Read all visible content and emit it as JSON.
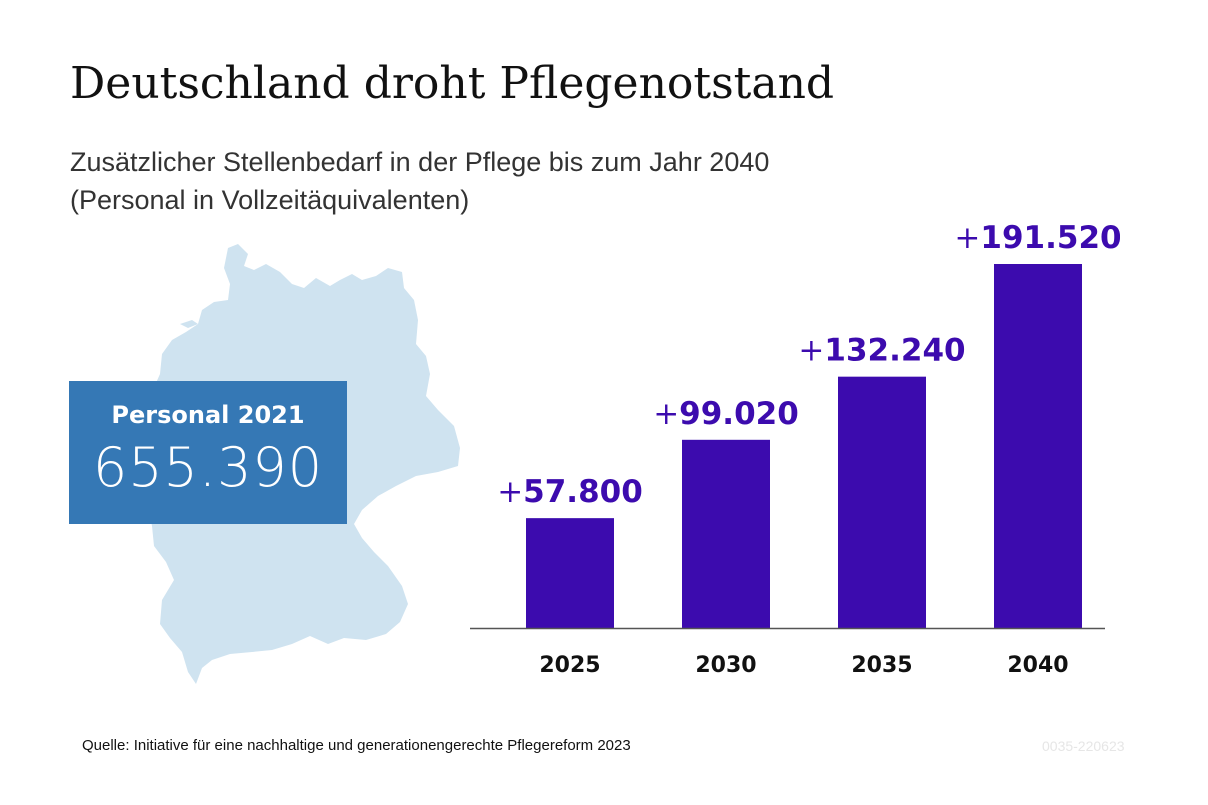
{
  "title": "Deutschland droht Pflegenotstand",
  "subtitle_line1": "Zusätzlicher Stellenbedarf in der Pflege bis zum Jahr 2040",
  "subtitle_line2": "(Personal in Vollzeitäquivalenten)",
  "info_box": {
    "label": "Personal 2021",
    "value": "655.390",
    "color": "#3578b5"
  },
  "map_color": "#cfe3f0",
  "chart_data": {
    "type": "bar",
    "title": "Deutschland droht Pflegenotstand",
    "subtitle": "Zusätzlicher Stellenbedarf in der Pflege bis zum Jahr 2040 (Personal in Vollzeitäquivalenten)",
    "categories": [
      "2025",
      "2030",
      "2035",
      "2040"
    ],
    "values": [
      57800,
      99020,
      132240,
      191520
    ],
    "value_labels": [
      "+57.800",
      "+99.020",
      "+132.240",
      "+191.520"
    ],
    "xlabel": "",
    "ylabel": "",
    "ylim": [
      0,
      191520
    ],
    "grid": false,
    "bar_color": "#3c0bae"
  },
  "source": "Quelle: Initiative für eine nachhaltige und generationengerechte Pflegereform 2023",
  "code": "0035-220623"
}
